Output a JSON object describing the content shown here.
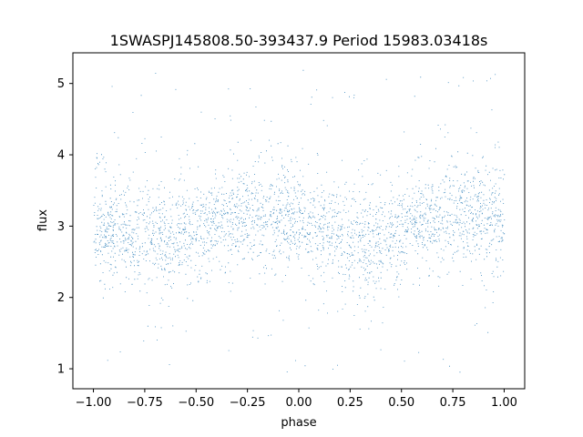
{
  "chart_data": {
    "type": "scatter",
    "title": "1SWASPJ145808.50-393437.9 Period 15983.03418s",
    "xlabel": "phase",
    "ylabel": "flux",
    "xlim": [
      -1.1,
      1.1
    ],
    "ylim": [
      0.72,
      5.43
    ],
    "xticks": [
      -1.0,
      -0.75,
      -0.5,
      -0.25,
      0.0,
      0.25,
      0.5,
      0.75,
      1.0
    ],
    "xtick_labels": [
      "−1.00",
      "−0.75",
      "−0.50",
      "−0.25",
      "0.00",
      "0.25",
      "0.50",
      "0.75",
      "1.00"
    ],
    "yticks": [
      1,
      2,
      3,
      4,
      5
    ],
    "ytick_labels": [
      "1",
      "2",
      "3",
      "4",
      "5"
    ],
    "grid": false,
    "legend": "none",
    "marker_color": "#1f77b4",
    "series": [
      {
        "x_range": [
          -1.0,
          1.0
        ],
        "y_range": [
          0.95,
          5.2
        ],
        "count": 30000,
        "model": {
          "mean_flux": 3.0,
          "amplitude": 0.17,
          "phase_of_maxima": [
            -1.0,
            -0.2,
            1.0
          ],
          "phase_of_minima": [
            -0.6,
            0.4
          ],
          "core_scatter": 0.32,
          "outlier_fraction": 0.05
        }
      }
    ]
  }
}
